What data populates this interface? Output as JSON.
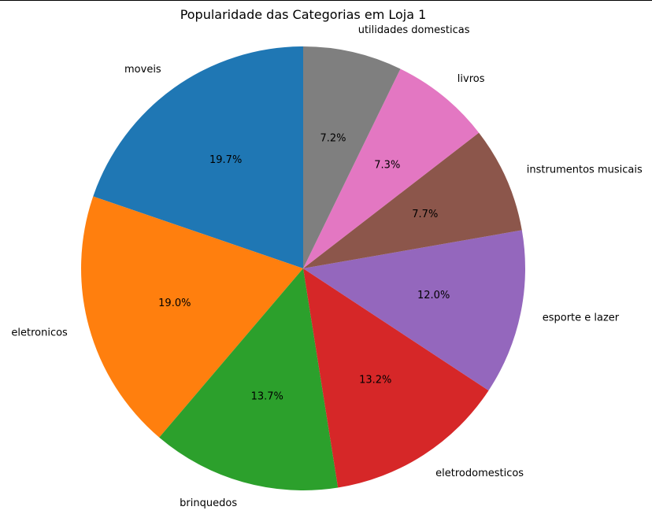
{
  "chart_data": {
    "type": "pie",
    "title": "Popularidade das Categorias em Loja 1",
    "start_angle_deg": 90,
    "direction": "counterclockwise",
    "slices": [
      {
        "label": "moveis",
        "value": 19.7,
        "pct_label": "19.7%",
        "color": "#1f77b4"
      },
      {
        "label": "eletronicos",
        "value": 19.0,
        "pct_label": "19.0%",
        "color": "#ff7f0e"
      },
      {
        "label": "brinquedos",
        "value": 13.7,
        "pct_label": "13.7%",
        "color": "#2ca02c"
      },
      {
        "label": "eletrodomesticos",
        "value": 13.2,
        "pct_label": "13.2%",
        "color": "#d62728"
      },
      {
        "label": "esporte e lazer",
        "value": 12.0,
        "pct_label": "12.0%",
        "color": "#9467bd"
      },
      {
        "label": "instrumentos musicais",
        "value": 7.7,
        "pct_label": "7.7%",
        "color": "#8c564b"
      },
      {
        "label": "livros",
        "value": 7.3,
        "pct_label": "7.3%",
        "color": "#e377c2"
      },
      {
        "label": "utilidades domesticas",
        "value": 7.2,
        "pct_label": "7.2%",
        "color": "#7f7f7f"
      }
    ]
  }
}
